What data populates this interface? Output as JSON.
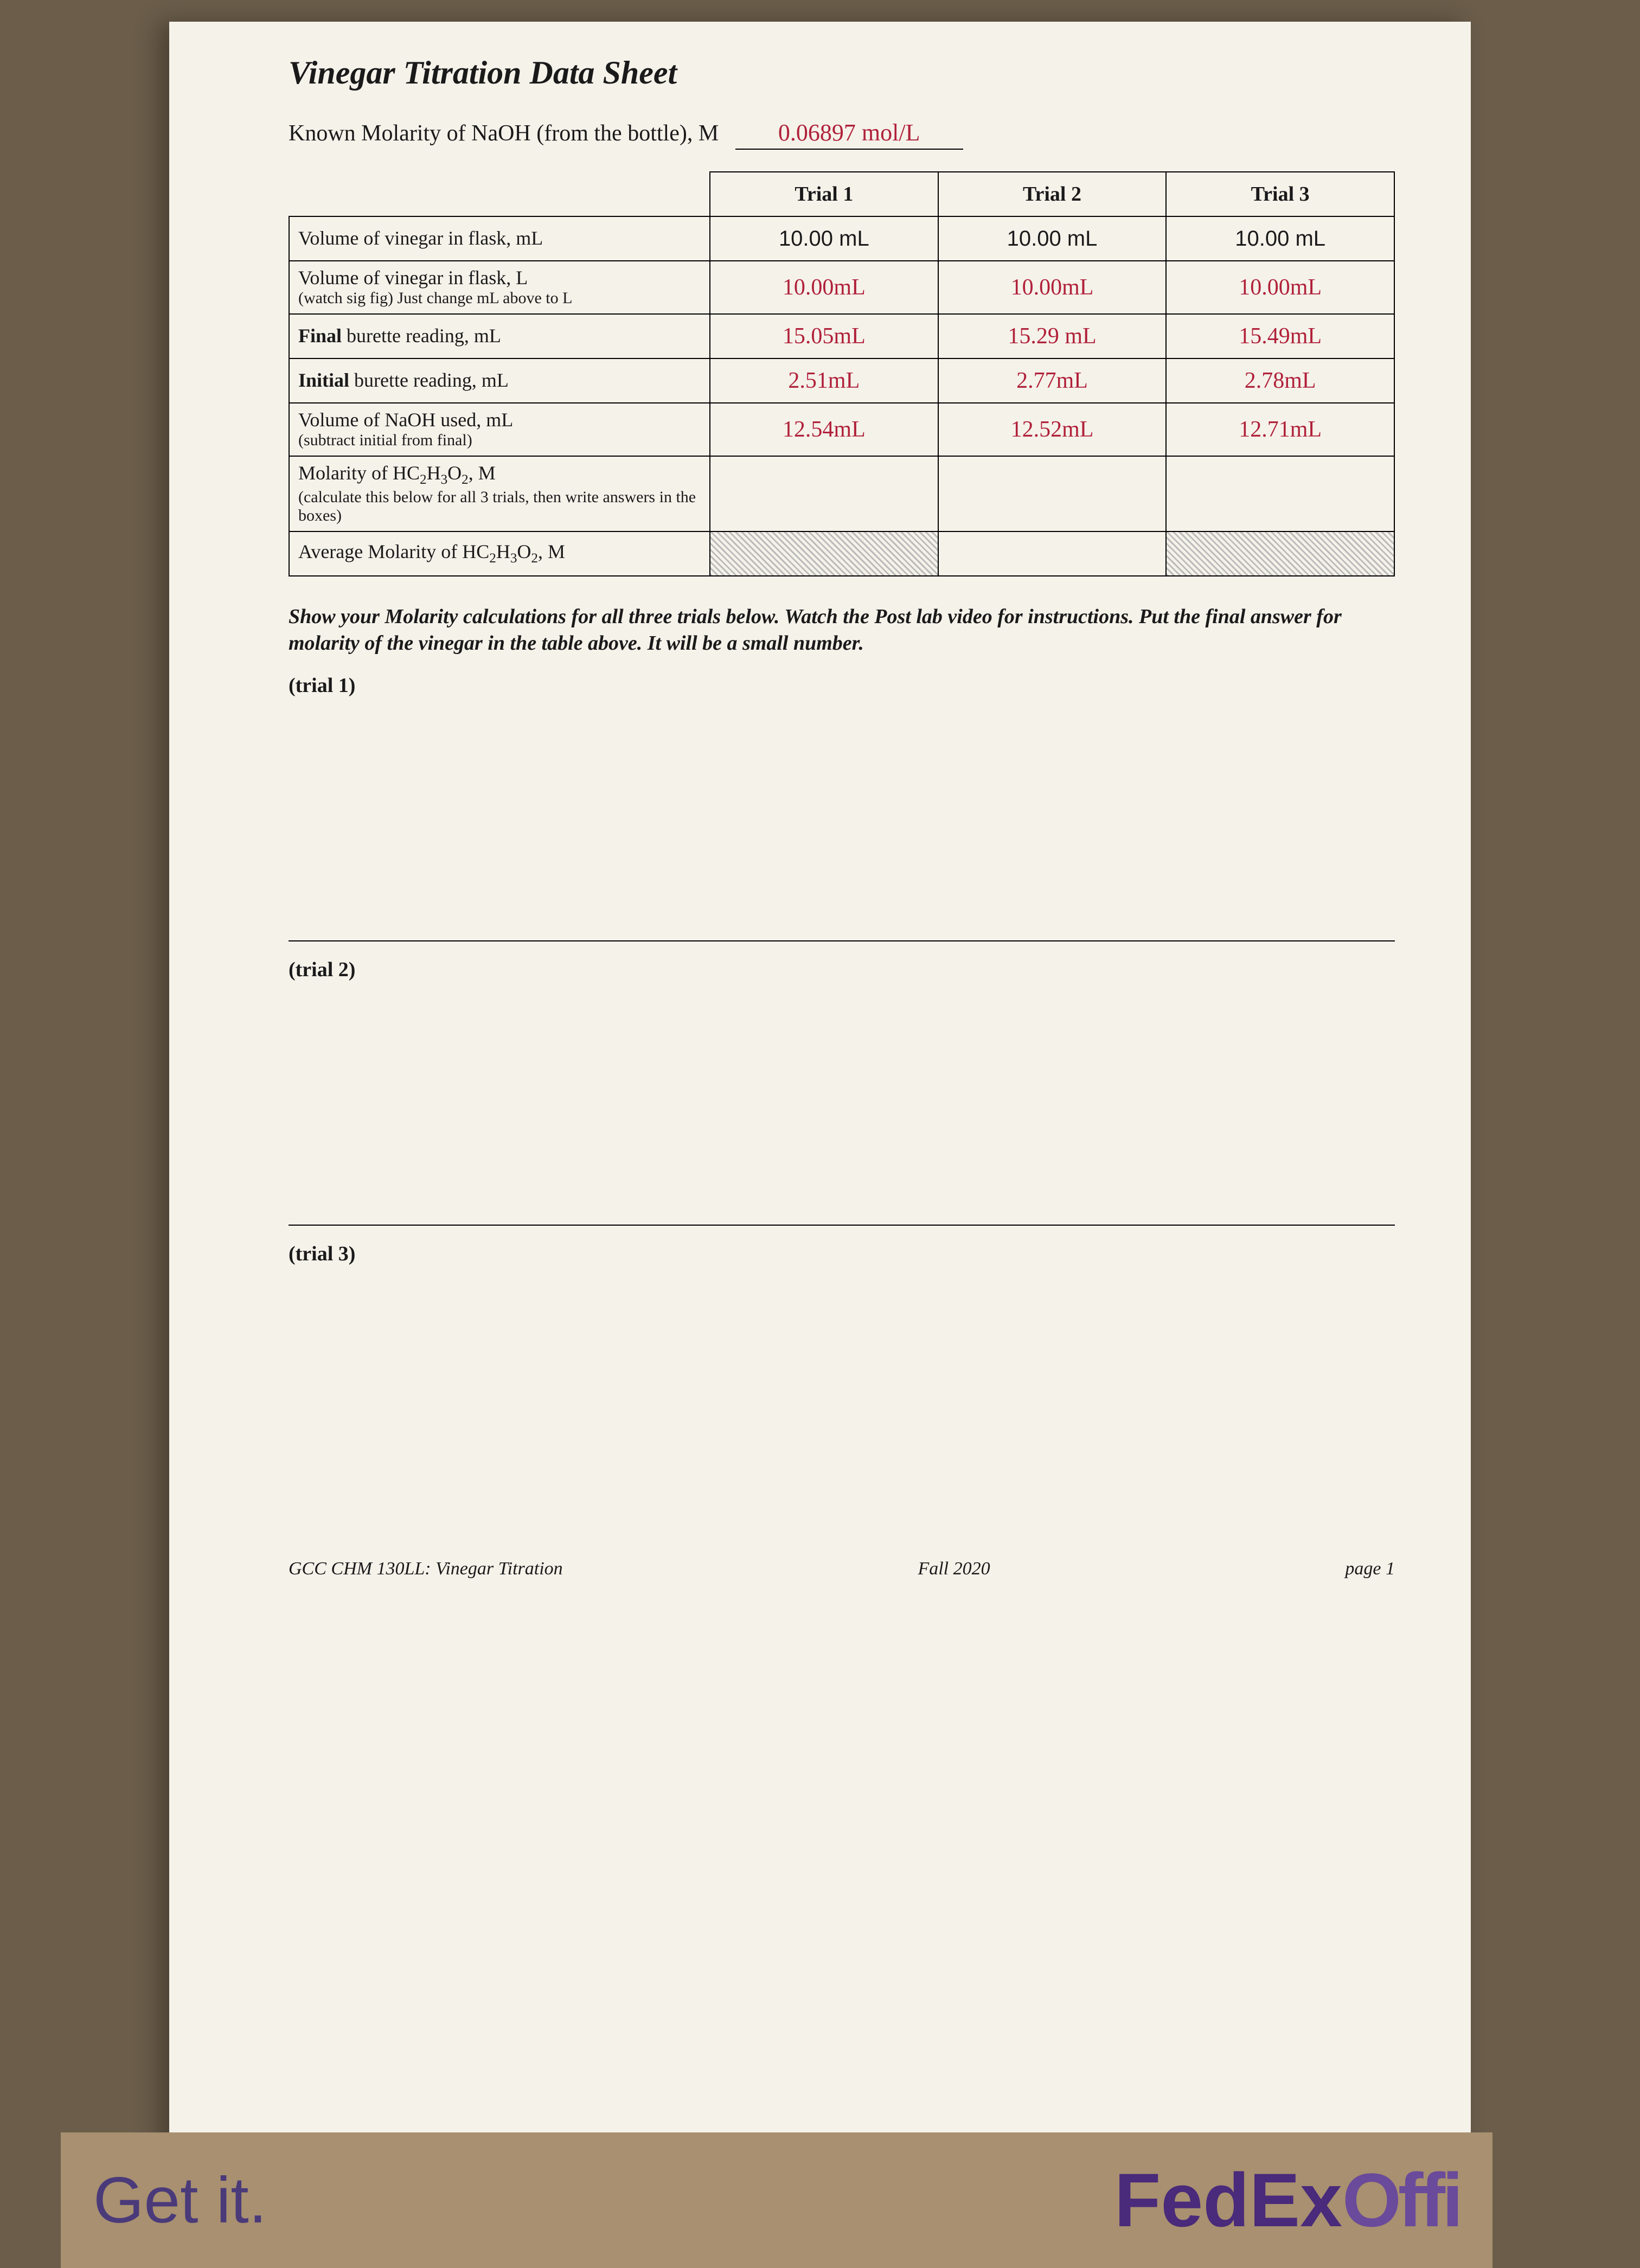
{
  "title": "Vinegar Titration Data Sheet",
  "molarity_label": "Known Molarity of NaOH (from the bottle), M",
  "molarity_value": "0.06897 mol/L",
  "table": {
    "headers": [
      "",
      "Trial 1",
      "Trial 2",
      "Trial 3"
    ],
    "rows": [
      {
        "label": "Volume of vinegar in flask, mL",
        "sub": "",
        "t1": "10.00 mL",
        "t2": "10.00 mL",
        "t3": "10.00 mL",
        "style": "printed"
      },
      {
        "label": "Volume of vinegar in flask, L",
        "sub": "(watch sig fig) Just change mL above to L",
        "t1": "10.00mL",
        "t2": "10.00mL",
        "t3": "10.00mL",
        "style": "hand"
      },
      {
        "label": "Final burette reading, mL",
        "sub": "",
        "t1": "15.05mL",
        "t2": "15.29 mL",
        "t3": "15.49mL",
        "style": "hand"
      },
      {
        "label": "Initial burette reading, mL",
        "sub": "",
        "t1": "2.51mL",
        "t2": "2.77mL",
        "t3": "2.78mL",
        "style": "hand"
      },
      {
        "label": "Volume of NaOH used, mL",
        "sub": "(subtract initial from final)",
        "t1": "12.54mL",
        "t2": "12.52mL",
        "t3": "12.71mL",
        "style": "hand"
      },
      {
        "label": "Molarity of HC₂H₃O₂, M",
        "sub": "(calculate this below for all 3 trials, then write answers in the boxes)",
        "t1": "",
        "t2": "",
        "t3": "",
        "style": "hand"
      },
      {
        "label": "Average Molarity of HC₂H₃O₂, M",
        "sub": "",
        "t1": "HATCH",
        "t2": "",
        "t3": "HATCH",
        "style": "hand"
      }
    ]
  },
  "instructions": "Show your Molarity calculations for all three trials below. Watch the Post lab video for instructions. Put the final answer for molarity of the vinegar in the table above. It will be a small number.",
  "trial_labels": [
    "(trial 1)",
    "(trial 2)",
    "(trial 3)"
  ],
  "footer": {
    "left": "GCC CHM 130LL: Vinegar Titration",
    "center": "Fall 2020",
    "right": "page 1"
  },
  "strip": {
    "getit": "Get it.",
    "fed": "Fed",
    "ex": "Ex",
    "off": "Offi"
  },
  "colors": {
    "paper": "#f5f2ea",
    "desk": "#6b5d4a",
    "ink": "#1a1a1a",
    "handwriting": "#b0213a",
    "fedex_purple": "#4a2a7a"
  }
}
